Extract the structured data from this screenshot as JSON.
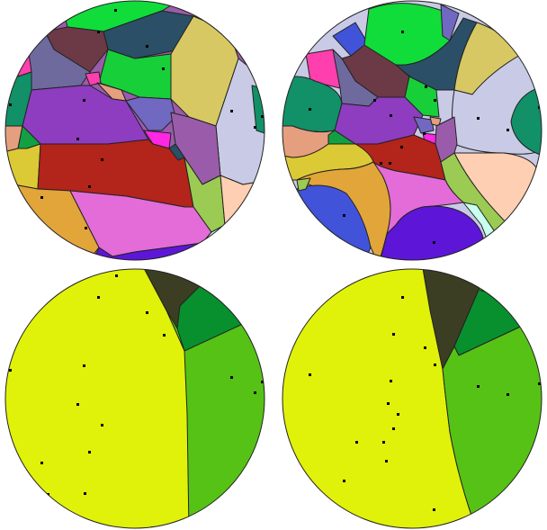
{
  "panels": [
    {
      "name": "euclidean-voronoi-colored",
      "palette": [
        "#10dd3a",
        "#2a4f66",
        "#6b3a46",
        "#d8c864",
        "#6e6a9e",
        "#17cf38",
        "#c9cbe6",
        "#ff3fae",
        "#129068",
        "#8e3cc0",
        "#e36cd9",
        "#b3241a",
        "#dcc936",
        "#e2a53a",
        "#4153d8",
        "#9bcb52",
        "#fecfb2",
        "#5d16d8",
        "#9a5caa",
        "#ff27e4",
        "#e59f7f",
        "#7168c2",
        "#c8ffee"
      ]
    },
    {
      "name": "hyperbolic-voronoi-colored",
      "palette": [
        "#10dd3a",
        "#2a4f66",
        "#6b3a46",
        "#d8c864",
        "#6e6a9e",
        "#17cf38",
        "#c9cbe6",
        "#ff3fae",
        "#129068",
        "#8e3cc0",
        "#e36cd9",
        "#b3241a",
        "#dcc936",
        "#e2a53a",
        "#4153d8",
        "#9bcb52",
        "#fecfb2",
        "#5d16d8",
        "#9a5caa",
        "#ff27e4",
        "#e59f7f",
        "#7168c2",
        "#c8ffee"
      ]
    },
    {
      "name": "euclidean-voronoi-clustered",
      "palette": [
        "#e0f20a",
        "#3b3e22",
        "#08902e",
        "#56c215"
      ]
    },
    {
      "name": "hyperbolic-voronoi-clustered",
      "palette": [
        "#e0f20a",
        "#3b3e22",
        "#08902e",
        "#56c215"
      ]
    }
  ]
}
